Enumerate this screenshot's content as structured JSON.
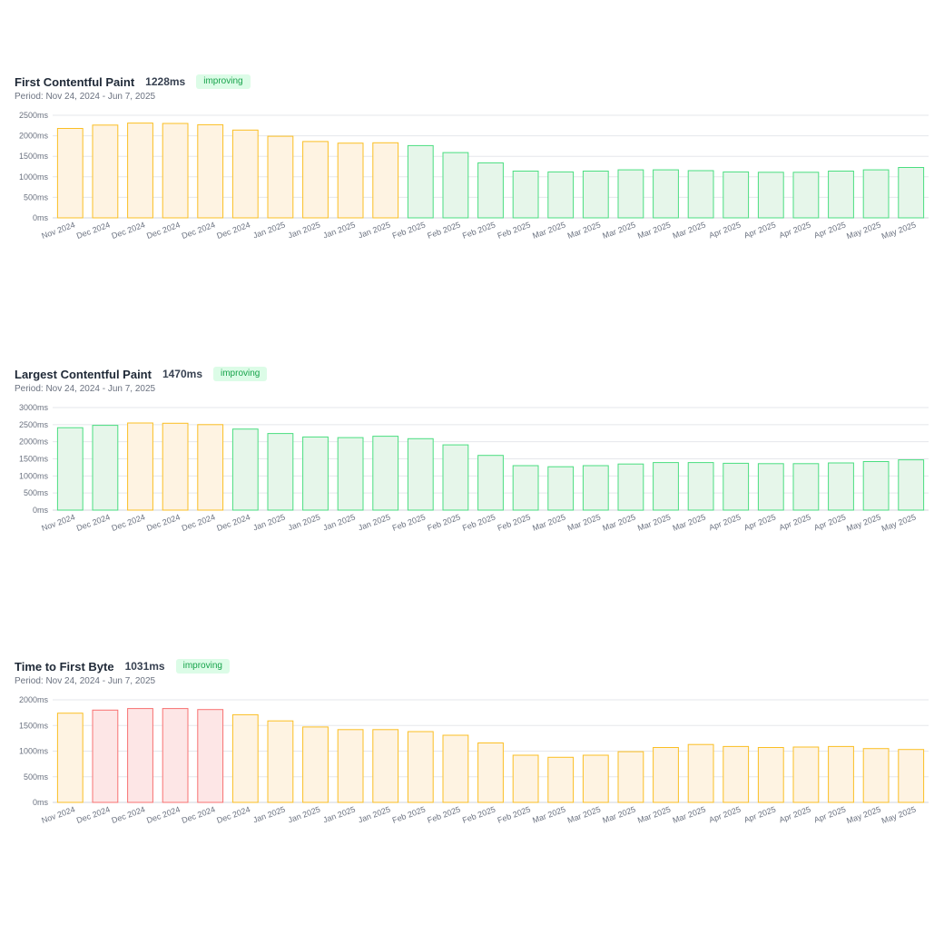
{
  "charts": [
    {
      "title": "First Contentful Paint",
      "metric": "1228ms",
      "badge": "improving",
      "period": "Period: Nov 24, 2024 - Jun 7, 2025"
    },
    {
      "title": "Largest Contentful Paint",
      "metric": "1470ms",
      "badge": "improving",
      "period": "Period: Nov 24, 2024 - Jun 7, 2025"
    },
    {
      "title": "Time to First Byte",
      "metric": "1031ms",
      "badge": "improving",
      "period": "Period: Nov 24, 2024 - Jun 7, 2025"
    }
  ],
  "colors": {
    "good": "#4ade80",
    "good_fill": "#e6f6ea",
    "needs_improvement": "#fbbf24",
    "needs_improvement_fill": "#fef3e2",
    "poor": "#f87171",
    "poor_fill": "#fde6e6",
    "badge_text": "#16a34a",
    "badge_bg": "#dcfce7"
  },
  "chart_data": [
    {
      "type": "bar",
      "title": "First Contentful Paint",
      "categories": [
        "Nov 2024",
        "Dec 2024",
        "Dec 2024",
        "Dec 2024",
        "Dec 2024",
        "Dec 2024",
        "Jan 2025",
        "Jan 2025",
        "Jan 2025",
        "Jan 2025",
        "Feb 2025",
        "Feb 2025",
        "Feb 2025",
        "Feb 2025",
        "Mar 2025",
        "Mar 2025",
        "Mar 2025",
        "Mar 2025",
        "Mar 2025",
        "Apr 2025",
        "Apr 2025",
        "Apr 2025",
        "Apr 2025",
        "May 2025",
        "May 2025"
      ],
      "values": [
        2180,
        2260,
        2310,
        2300,
        2270,
        2140,
        1990,
        1860,
        1820,
        1830,
        1760,
        1590,
        1340,
        1140,
        1120,
        1140,
        1170,
        1170,
        1150,
        1120,
        1110,
        1110,
        1140,
        1170,
        1228
      ],
      "ratings": [
        "ni",
        "ni",
        "ni",
        "ni",
        "ni",
        "ni",
        "ni",
        "ni",
        "ni",
        "ni",
        "good",
        "good",
        "good",
        "good",
        "good",
        "good",
        "good",
        "good",
        "good",
        "good",
        "good",
        "good",
        "good",
        "good",
        "good"
      ],
      "yticks": [
        "0ms",
        "500ms",
        "1000ms",
        "1500ms",
        "2000ms",
        "2500ms"
      ],
      "ylim": [
        0,
        2500
      ],
      "grid": true
    },
    {
      "type": "bar",
      "title": "Largest Contentful Paint",
      "categories": [
        "Nov 2024",
        "Dec 2024",
        "Dec 2024",
        "Dec 2024",
        "Dec 2024",
        "Dec 2024",
        "Jan 2025",
        "Jan 2025",
        "Jan 2025",
        "Jan 2025",
        "Feb 2025",
        "Feb 2025",
        "Feb 2025",
        "Feb 2025",
        "Mar 2025",
        "Mar 2025",
        "Mar 2025",
        "Mar 2025",
        "Mar 2025",
        "Apr 2025",
        "Apr 2025",
        "Apr 2025",
        "Apr 2025",
        "May 2025",
        "May 2025"
      ],
      "values": [
        2410,
        2480,
        2550,
        2540,
        2500,
        2370,
        2240,
        2140,
        2120,
        2160,
        2090,
        1910,
        1600,
        1300,
        1270,
        1300,
        1350,
        1390,
        1390,
        1370,
        1360,
        1360,
        1380,
        1420,
        1470
      ],
      "ratings": [
        "good",
        "good",
        "ni",
        "ni",
        "ni",
        "good",
        "good",
        "good",
        "good",
        "good",
        "good",
        "good",
        "good",
        "good",
        "good",
        "good",
        "good",
        "good",
        "good",
        "good",
        "good",
        "good",
        "good",
        "good",
        "good"
      ],
      "yticks": [
        "0ms",
        "500ms",
        "1000ms",
        "1500ms",
        "2000ms",
        "2500ms",
        "3000ms"
      ],
      "ylim": [
        0,
        3000
      ],
      "grid": true
    },
    {
      "type": "bar",
      "title": "Time to First Byte",
      "categories": [
        "Nov 2024",
        "Dec 2024",
        "Dec 2024",
        "Dec 2024",
        "Dec 2024",
        "Dec 2024",
        "Jan 2025",
        "Jan 2025",
        "Jan 2025",
        "Jan 2025",
        "Feb 2025",
        "Feb 2025",
        "Feb 2025",
        "Feb 2025",
        "Mar 2025",
        "Mar 2025",
        "Mar 2025",
        "Mar 2025",
        "Mar 2025",
        "Apr 2025",
        "Apr 2025",
        "Apr 2025",
        "Apr 2025",
        "May 2025",
        "May 2025"
      ],
      "values": [
        1740,
        1800,
        1830,
        1830,
        1810,
        1710,
        1590,
        1470,
        1420,
        1420,
        1380,
        1310,
        1160,
        920,
        880,
        920,
        990,
        1070,
        1130,
        1090,
        1070,
        1080,
        1090,
        1050,
        1031
      ],
      "ratings": [
        "ni",
        "poor",
        "poor",
        "poor",
        "poor",
        "ni",
        "ni",
        "ni",
        "ni",
        "ni",
        "ni",
        "ni",
        "ni",
        "ni",
        "ni",
        "ni",
        "ni",
        "ni",
        "ni",
        "ni",
        "ni",
        "ni",
        "ni",
        "ni",
        "ni"
      ],
      "yticks": [
        "0ms",
        "500ms",
        "1000ms",
        "1500ms",
        "2000ms"
      ],
      "ylim": [
        0,
        2000
      ],
      "grid": true
    }
  ]
}
